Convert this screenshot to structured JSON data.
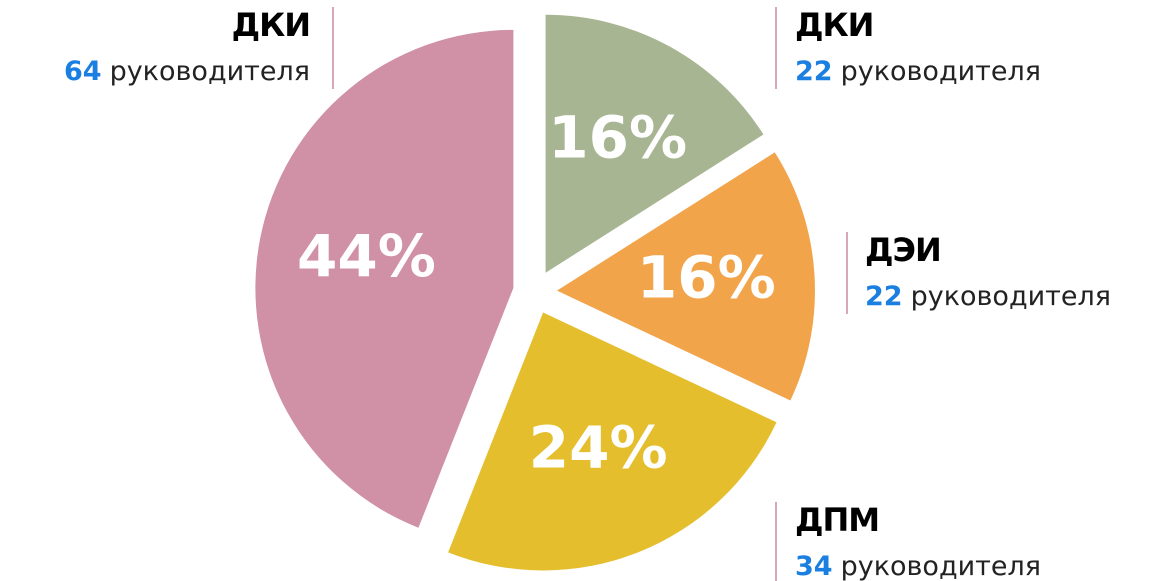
{
  "chart_data": {
    "type": "pie",
    "categories": [
      "ДКИ",
      "ДЭИ",
      "ДПМ",
      "ДКИ"
    ],
    "values": [
      16,
      16,
      24,
      44
    ],
    "value_labels": [
      "16%",
      "16%",
      "24%",
      "44%"
    ],
    "colors": [
      "#a8b592",
      "#f2a44a",
      "#e4be2c",
      "#d090a6"
    ],
    "counts": [
      22,
      22,
      34,
      64
    ],
    "count_unit": "руководителя",
    "count_color": "#1a7fe0"
  }
}
